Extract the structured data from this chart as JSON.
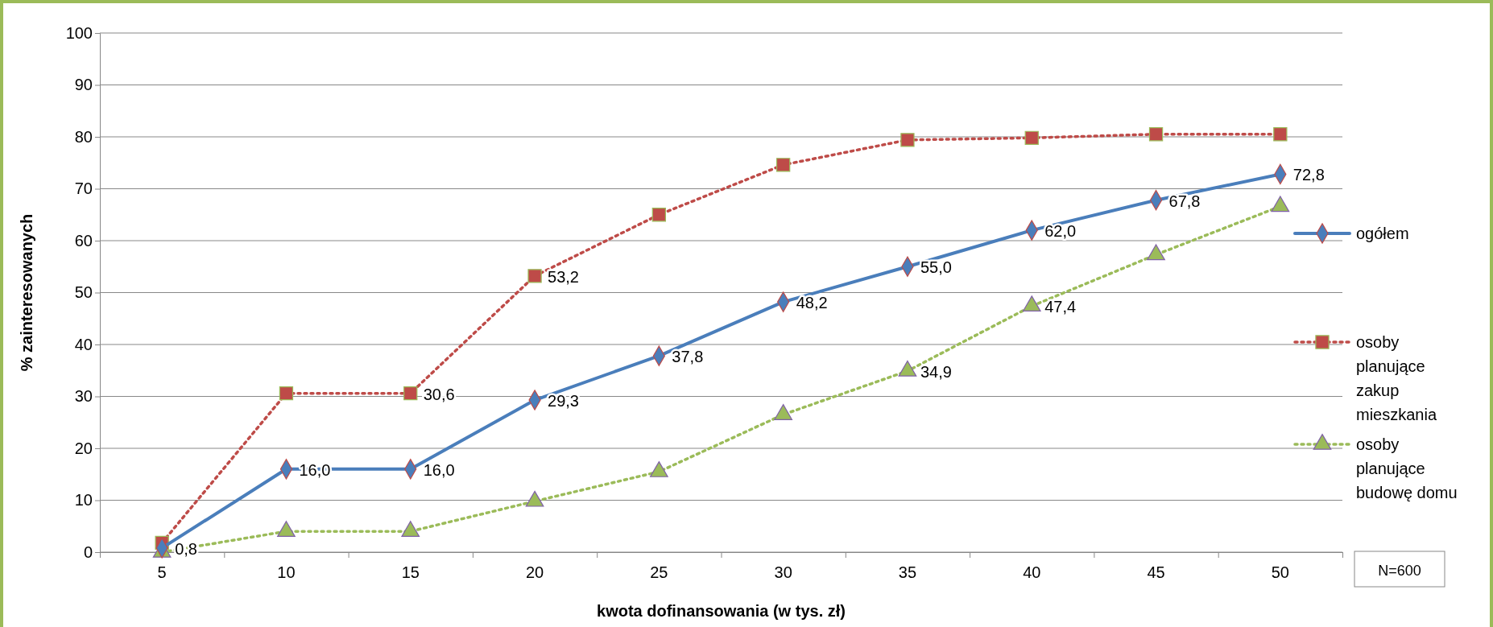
{
  "chart_data": {
    "type": "line",
    "xlabel": "kwota dofinansowania (w tys. zł)",
    "ylabel": "% zainteresowanych",
    "categories": [
      "5",
      "10",
      "15",
      "20",
      "25",
      "30",
      "35",
      "40",
      "45",
      "50"
    ],
    "ylim": [
      0,
      100
    ],
    "yticks": [
      0,
      10,
      20,
      30,
      40,
      50,
      60,
      70,
      80,
      90,
      100
    ],
    "grid": "y",
    "legend": "right",
    "series": [
      {
        "name": "ogółem",
        "color": "#4a7ebb",
        "marker": "diamond",
        "line_style": "solid",
        "values": [
          0.8,
          16,
          16,
          29.3,
          37.8,
          48.2,
          55,
          62,
          67.8,
          72.8
        ],
        "value_labels": [
          "0,8",
          "16,0",
          "16,0",
          "29,3",
          "37,8",
          "48,2",
          "55,0",
          "62,0",
          "67,8",
          "72,8"
        ]
      },
      {
        "name": "osoby planujące zakup mieszkania",
        "color": "#be4b48",
        "marker": "square",
        "line_style": "dotted",
        "values": [
          1.8,
          30.6,
          30.6,
          53.2,
          65,
          74.6,
          79.4,
          79.8,
          80.5,
          80.5
        ],
        "value_labels": [
          null,
          null,
          "30,6",
          "53,2",
          null,
          null,
          null,
          null,
          null,
          null
        ]
      },
      {
        "name": "osoby planujące budowę domu",
        "color": "#9bbb59",
        "marker": "triangle",
        "line_style": "dotted",
        "values": [
          0,
          4,
          4,
          9.8,
          15.5,
          26.5,
          34.9,
          47.4,
          57.3,
          66.6
        ],
        "value_labels": [
          null,
          null,
          null,
          null,
          null,
          null,
          "34,9",
          "47,4",
          null,
          null
        ]
      }
    ],
    "annotations": [
      "N=600"
    ]
  }
}
